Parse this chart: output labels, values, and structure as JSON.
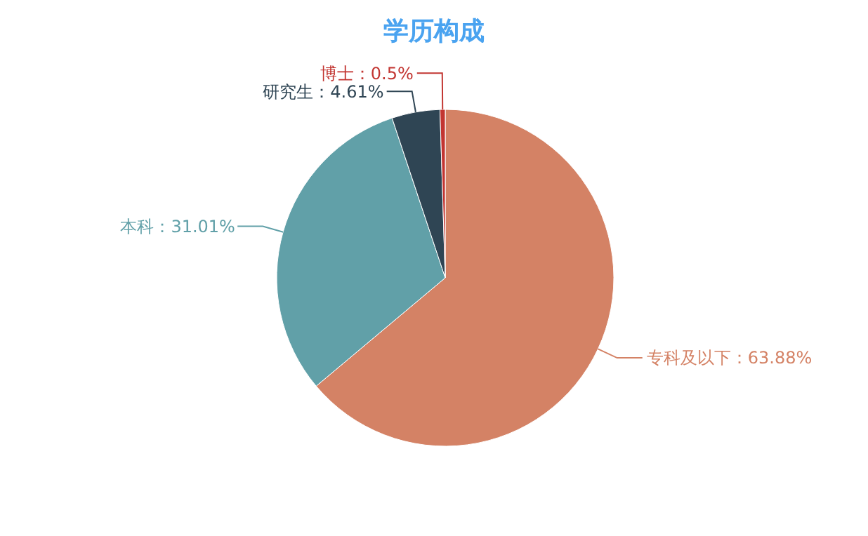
{
  "chart_data": {
    "type": "pie",
    "title": "学历构成",
    "categories": [
      "专科及以下",
      "本科",
      "研究生",
      "博士"
    ],
    "values": [
      63.88,
      31.01,
      4.61,
      0.5
    ],
    "value_labels": [
      "：63.88%",
      "：31.01%",
      "：4.61%",
      "：0.5%"
    ],
    "colors": [
      "#d48265",
      "#61a0a8",
      "#2f4554",
      "#c23531"
    ]
  }
}
